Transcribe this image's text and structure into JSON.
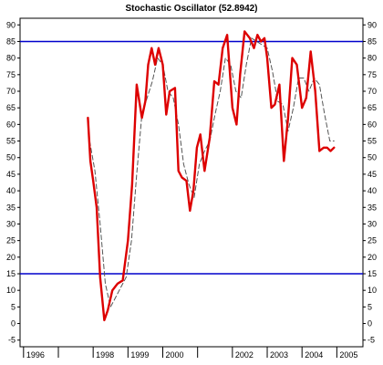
{
  "chart_data": {
    "type": "line",
    "title": "Stochastic Oscillator (52.8942)",
    "xlabel": "",
    "ylabel": "",
    "ylim": [
      -7,
      92
    ],
    "xlim": [
      1995.9,
      2005.75
    ],
    "grid": false,
    "y_ticks": [
      -5,
      0,
      5,
      10,
      15,
      20,
      25,
      30,
      35,
      40,
      45,
      50,
      55,
      60,
      65,
      70,
      75,
      80,
      85,
      90
    ],
    "y_tick_labels": [
      "-5",
      "0",
      "5",
      "10",
      "15",
      "20",
      "25",
      "30",
      "35",
      "40",
      "45",
      "50",
      "55",
      "60",
      "65",
      "70",
      "75",
      "80",
      "85",
      "90"
    ],
    "x_ticks": [
      1996,
      1997,
      1998,
      1999,
      2000,
      2001,
      2002,
      2003,
      2004,
      2005
    ],
    "x_tick_labels": [
      "1996",
      "",
      "1998",
      "1999",
      "2000",
      "",
      "2002",
      "2003",
      "2004",
      "2005"
    ],
    "reference_lines": [
      {
        "value": 85,
        "color": "#0000cc"
      },
      {
        "value": 15,
        "color": "#0000cc"
      }
    ],
    "series": [
      {
        "style": "solid",
        "color": "#dd0000",
        "x": [
          1997.85,
          1997.92,
          1998.0,
          1998.1,
          1998.2,
          1998.32,
          1998.42,
          1998.55,
          1998.7,
          1998.85,
          1999.0,
          1999.12,
          1999.25,
          1999.4,
          1999.5,
          1999.58,
          1999.68,
          1999.78,
          1999.88,
          2000.0,
          2000.1,
          2000.2,
          2000.35,
          2000.45,
          2000.55,
          2000.68,
          2000.78,
          2000.88,
          2000.98,
          2001.08,
          2001.2,
          2001.35,
          2001.48,
          2001.6,
          2001.72,
          2001.85,
          2002.0,
          2002.12,
          2002.22,
          2002.35,
          2002.5,
          2002.62,
          2002.72,
          2002.82,
          2002.92,
          2003.0,
          2003.12,
          2003.22,
          2003.35,
          2003.48,
          2003.6,
          2003.72,
          2003.85,
          2004.0,
          2004.12,
          2004.25,
          2004.38,
          2004.5,
          2004.62,
          2004.72,
          2004.82,
          2004.92
        ],
        "y": [
          62,
          49,
          43,
          35,
          14,
          1,
          4,
          10,
          12,
          13,
          25,
          42,
          72,
          62,
          67,
          78,
          83,
          78,
          83,
          78,
          63,
          70,
          71,
          46,
          44,
          43,
          34,
          40,
          53,
          57,
          46,
          56,
          73,
          72,
          83,
          87,
          65,
          60,
          75,
          88,
          86,
          83,
          87,
          85,
          86,
          80,
          65,
          66,
          72,
          49,
          62,
          80,
          78,
          65,
          68,
          82,
          70,
          52,
          53,
          53,
          52,
          53
        ]
      },
      {
        "style": "dashed",
        "color": "#555555",
        "x": [
          1997.9,
          1998.05,
          1998.2,
          1998.35,
          1998.5,
          1998.65,
          1998.8,
          1998.95,
          1999.1,
          1999.25,
          1999.4,
          1999.55,
          1999.7,
          1999.85,
          2000.0,
          2000.15,
          2000.3,
          2000.45,
          2000.6,
          2000.75,
          2000.9,
          2001.05,
          2001.2,
          2001.35,
          2001.5,
          2001.65,
          2001.8,
          2001.95,
          2002.1,
          2002.25,
          2002.4,
          2002.55,
          2002.7,
          2002.85,
          2003.0,
          2003.15,
          2003.3,
          2003.45,
          2003.6,
          2003.75,
          2003.9,
          2004.05,
          2004.2,
          2004.35,
          2004.5,
          2004.65,
          2004.8,
          2004.92
        ],
        "y": [
          55,
          46,
          30,
          12,
          5,
          8,
          11,
          14,
          25,
          45,
          63,
          68,
          73,
          80,
          78,
          70,
          68,
          60,
          48,
          42,
          38,
          48,
          52,
          55,
          63,
          70,
          80,
          78,
          70,
          68,
          78,
          86,
          85,
          84,
          83,
          76,
          67,
          66,
          58,
          65,
          74,
          74,
          70,
          74,
          72,
          63,
          55,
          55
        ]
      }
    ]
  }
}
